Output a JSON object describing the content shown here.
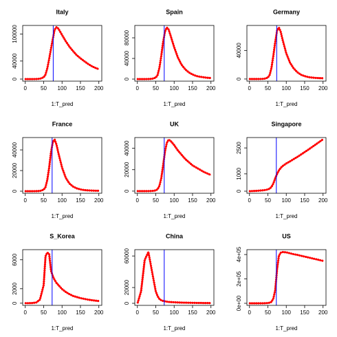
{
  "chart_data": [
    {
      "type": "line",
      "title": "Italy",
      "xlabel": "1:T_pred",
      "color": "#ff0000",
      "vline": 76,
      "vline_color": "#0000ff",
      "x": [
        1,
        10,
        20,
        30,
        40,
        50,
        55,
        60,
        65,
        70,
        75,
        80,
        85,
        90,
        100,
        110,
        120,
        130,
        140,
        150,
        160,
        170,
        180,
        190,
        200
      ],
      "values": [
        0,
        0,
        0,
        200,
        800,
        4000,
        10000,
        24000,
        45000,
        68000,
        90000,
        110000,
        115000,
        112000,
        98000,
        84000,
        72000,
        62000,
        53000,
        46000,
        40000,
        34000,
        29000,
        25000,
        22000
      ],
      "xlim": [
        -7,
        208
      ],
      "ylim": [
        -4600,
        119000
      ],
      "xticks": [
        0,
        50,
        100,
        150,
        200
      ],
      "yticks": [
        0,
        40000,
        100000
      ]
    },
    {
      "type": "line",
      "title": "Spain",
      "xlabel": "1:T_pred",
      "color": "#ff0000",
      "vline": 73,
      "vline_color": "#0000ff",
      "x": [
        1,
        10,
        20,
        30,
        40,
        50,
        55,
        60,
        65,
        70,
        75,
        80,
        85,
        90,
        100,
        110,
        120,
        130,
        140,
        150,
        160,
        170,
        180,
        190,
        200
      ],
      "values": [
        0,
        0,
        0,
        100,
        500,
        3000,
        8000,
        22000,
        45000,
        72000,
        92000,
        100000,
        96000,
        85000,
        62000,
        42000,
        28000,
        19000,
        13000,
        9000,
        6000,
        4500,
        3500,
        2500,
        2000
      ],
      "xlim": [
        -7,
        208
      ],
      "ylim": [
        -4000,
        104000
      ],
      "xticks": [
        0,
        50,
        100,
        150,
        200
      ],
      "yticks": [
        0,
        40000,
        80000
      ]
    },
    {
      "type": "line",
      "title": "Germany",
      "xlabel": "1:T_pred",
      "color": "#ff0000",
      "vline": 74,
      "vline_color": "#0000ff",
      "x": [
        1,
        10,
        20,
        30,
        40,
        50,
        55,
        60,
        65,
        70,
        75,
        80,
        85,
        90,
        100,
        110,
        120,
        130,
        140,
        150,
        160,
        170,
        180,
        190,
        200
      ],
      "values": [
        0,
        0,
        0,
        50,
        300,
        2000,
        6000,
        16000,
        33000,
        52000,
        68000,
        72000,
        66000,
        55000,
        36000,
        23000,
        15000,
        9500,
        6000,
        4000,
        2700,
        2000,
        1500,
        1200,
        1000
      ],
      "xlim": [
        -7,
        208
      ],
      "ylim": [
        -3000,
        75000
      ],
      "xticks": [
        0,
        50,
        100,
        150,
        200
      ],
      "yticks": [
        0,
        40000
      ]
    },
    {
      "type": "line",
      "title": "France",
      "xlabel": "1:T_pred",
      "color": "#ff0000",
      "vline": 73,
      "vline_color": "#0000ff",
      "x": [
        1,
        10,
        20,
        30,
        40,
        50,
        55,
        60,
        65,
        70,
        75,
        80,
        85,
        90,
        100,
        110,
        120,
        130,
        140,
        150,
        160,
        170,
        180,
        190,
        200
      ],
      "values": [
        0,
        0,
        0,
        50,
        200,
        1500,
        4000,
        11000,
        23000,
        38000,
        48000,
        50000,
        45000,
        37000,
        23000,
        13000,
        7500,
        4500,
        2700,
        1700,
        1100,
        800,
        600,
        500,
        400
      ],
      "xlim": [
        -7,
        208
      ],
      "ylim": [
        -2000,
        52000
      ],
      "xticks": [
        0,
        50,
        100,
        150,
        200
      ],
      "yticks": [
        0,
        20000,
        40000
      ]
    },
    {
      "type": "line",
      "title": "UK",
      "xlabel": "1:T_pred",
      "color": "#ff0000",
      "vline": 73,
      "vline_color": "#0000ff",
      "x": [
        1,
        10,
        20,
        30,
        40,
        50,
        55,
        60,
        65,
        70,
        75,
        80,
        85,
        90,
        100,
        110,
        120,
        130,
        140,
        150,
        160,
        170,
        180,
        190,
        200
      ],
      "values": [
        0,
        0,
        0,
        30,
        100,
        600,
        1800,
        5000,
        12000,
        24000,
        37000,
        45000,
        48000,
        47000,
        43000,
        38000,
        34000,
        30000,
        27000,
        24000,
        22000,
        20000,
        18000,
        16500,
        15000
      ],
      "xlim": [
        -7,
        208
      ],
      "ylim": [
        -2000,
        50000
      ],
      "xticks": [
        0,
        50,
        100,
        150,
        200
      ],
      "yticks": [
        0,
        20000,
        40000
      ]
    },
    {
      "type": "line",
      "title": "Singapore",
      "xlabel": "1:T_pred",
      "color": "#ff0000",
      "vline": 73,
      "vline_color": "#0000ff",
      "x": [
        1,
        10,
        20,
        30,
        40,
        50,
        55,
        60,
        65,
        70,
        75,
        80,
        85,
        90,
        100,
        110,
        120,
        130,
        140,
        150,
        160,
        170,
        180,
        190,
        200
      ],
      "values": [
        0,
        10,
        20,
        40,
        60,
        100,
        150,
        250,
        450,
        750,
        1000,
        1200,
        1350,
        1450,
        1600,
        1720,
        1850,
        1980,
        2120,
        2260,
        2400,
        2550,
        2700,
        2850,
        3000
      ],
      "xlim": [
        -7,
        208
      ],
      "ylim": [
        -120,
        3100
      ],
      "xticks": [
        0,
        50,
        100,
        150,
        200
      ],
      "yticks": [
        0,
        1000,
        2500
      ]
    },
    {
      "type": "line",
      "title": "S_Korea",
      "xlabel": "1:T_pred",
      "color": "#ff0000",
      "vline": 73,
      "vline_color": "#0000ff",
      "x": [
        1,
        10,
        20,
        30,
        40,
        50,
        55,
        60,
        65,
        70,
        75,
        80,
        85,
        90,
        100,
        110,
        120,
        130,
        140,
        150,
        160,
        170,
        180,
        190,
        200
      ],
      "values": [
        0,
        0,
        20,
        100,
        500,
        2500,
        6500,
        7000,
        6800,
        4500,
        3700,
        3200,
        2800,
        2500,
        1950,
        1550,
        1250,
        1000,
        850,
        700,
        600,
        500,
        420,
        360,
        300
      ],
      "xlim": [
        -7,
        208
      ],
      "ylim": [
        -300,
        7400
      ],
      "xticks": [
        0,
        50,
        100,
        150,
        200
      ],
      "yticks": [
        0,
        2000,
        6000
      ]
    },
    {
      "type": "line",
      "title": "China",
      "xlabel": "1:T_pred",
      "color": "#ff0000",
      "vline": 73,
      "vline_color": "#0000ff",
      "x": [
        1,
        10,
        20,
        30,
        40,
        50,
        55,
        60,
        65,
        70,
        75,
        80,
        85,
        90,
        100,
        110,
        120,
        130,
        140,
        150,
        160,
        170,
        180,
        190,
        200
      ],
      "values": [
        1000,
        15000,
        55000,
        65000,
        40000,
        15000,
        9000,
        5500,
        3800,
        3000,
        2500,
        2100,
        1800,
        1600,
        1300,
        1100,
        900,
        800,
        700,
        600,
        500,
        450,
        400,
        350,
        300
      ],
      "xlim": [
        -7,
        208
      ],
      "ylim": [
        -2600,
        68000
      ],
      "xticks": [
        0,
        50,
        100,
        150,
        200
      ],
      "yticks": [
        0,
        20000,
        60000
      ]
    },
    {
      "type": "line",
      "title": "US",
      "xlabel": "1:T_pred",
      "color": "#ff0000",
      "vline": 73,
      "vline_color": "#0000ff",
      "x": [
        1,
        10,
        20,
        30,
        40,
        50,
        55,
        60,
        65,
        70,
        75,
        80,
        85,
        90,
        100,
        110,
        120,
        130,
        140,
        150,
        160,
        170,
        180,
        190,
        200
      ],
      "values": [
        0,
        0,
        0,
        100,
        500,
        2000,
        5000,
        12000,
        40000,
        110000,
        280000,
        390000,
        415000,
        420000,
        418000,
        410000,
        403000,
        397000,
        390000,
        383000,
        376000,
        369000,
        362000,
        355000,
        348000
      ],
      "xlim": [
        -7,
        208
      ],
      "ylim": [
        -17000,
        440000
      ],
      "xticks": [
        0,
        50,
        100,
        150,
        200
      ],
      "yticks": [
        {
          "value": 0,
          "label": "0e+00"
        },
        {
          "value": 200000,
          "label": "2e+05"
        },
        {
          "value": 400000,
          "label": "4e+05"
        }
      ]
    }
  ]
}
